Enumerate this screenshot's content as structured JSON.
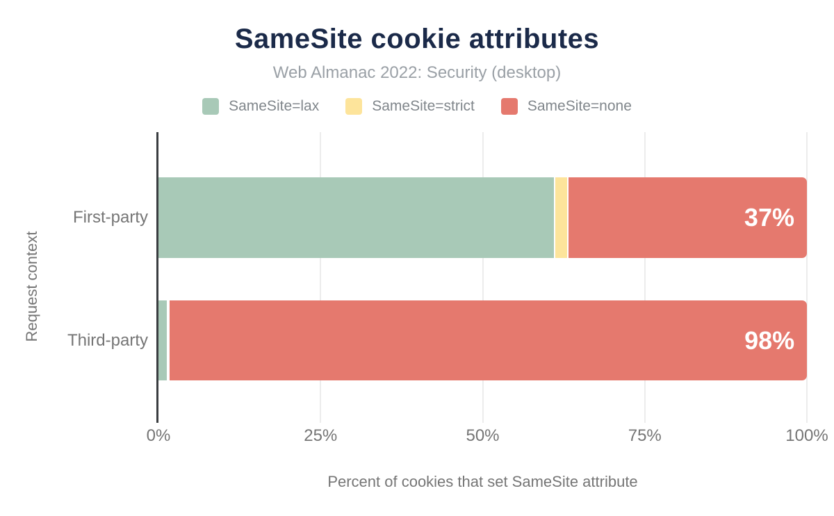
{
  "colors": {
    "background": "#ffffff",
    "title": "#1b2a49",
    "subtitle": "#9aa0a6",
    "label": "#757575",
    "legend_text": "#80868b",
    "axis_line": "#3a3d40",
    "gridline": "#ececec",
    "value_label": "#ffffff"
  },
  "chart_data": {
    "type": "bar",
    "orientation": "horizontal",
    "stacked": true,
    "title": "SameSite cookie attributes",
    "subtitle": "Web Almanac 2022: Security (desktop)",
    "categories": [
      "First-party",
      "Third-party"
    ],
    "series": [
      {
        "name": "SameSite=lax",
        "color": "#a8c9b7",
        "values": [
          61,
          1.3
        ]
      },
      {
        "name": "SameSite=strict",
        "color": "#fde49b",
        "values": [
          2,
          0.2
        ]
      },
      {
        "name": "SameSite=none",
        "color": "#e5796e",
        "values": [
          37,
          98.5
        ]
      }
    ],
    "bar_labels": [
      "37%",
      "98%"
    ],
    "xlabel": "Percent of cookies that set SameSite attribute",
    "ylabel": "Request context",
    "xlim": [
      0,
      100
    ],
    "xticks": [
      0,
      25,
      50,
      75,
      100
    ],
    "xtick_labels": [
      "0%",
      "25%",
      "50%",
      "75%",
      "100%"
    ],
    "grid": "vertical-light",
    "legend_position": "top"
  }
}
